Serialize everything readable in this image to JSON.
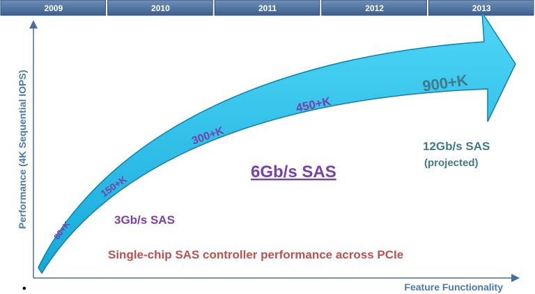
{
  "header": {
    "years": [
      "2009",
      "2010",
      "2011",
      "2012",
      "2013"
    ]
  },
  "axes": {
    "y_label": "Performance (4K Sequential IOPS)",
    "x_label": "Feature Functionality"
  },
  "arrow": {
    "labels": [
      "80+K",
      "150+K",
      "300+K",
      "450+K",
      "900+K"
    ]
  },
  "annotations": {
    "gen1": "3Gb/s SAS",
    "gen2": "6Gb/s SAS",
    "gen3": "12Gb/s SAS",
    "gen3_note": "(projected)",
    "caption": "Single-chip SAS controller performance across PCIe",
    "bullet": "•"
  }
}
